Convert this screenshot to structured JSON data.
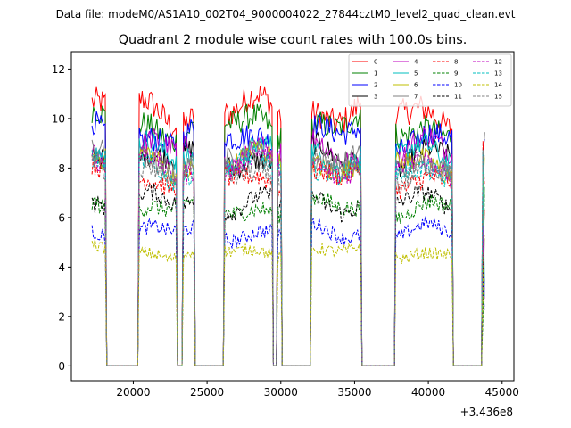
{
  "suptitle": "Data file: modeM0/AS1A10_002T04_9000004022_27844cztM0_level2_quad_clean.evt",
  "chart_data": {
    "type": "line",
    "title": "Quadrant 2 module wise count rates with 100.0s bins.",
    "xlabel": "",
    "ylabel": "",
    "x_offset_label": "+3.436e8",
    "xlim": [
      15800,
      45800
    ],
    "ylim": [
      -0.6,
      12.7
    ],
    "xticks": [
      20000,
      25000,
      30000,
      35000,
      40000,
      45000
    ],
    "xtick_labels": [
      "20000",
      "25000",
      "30000",
      "35000",
      "40000",
      "45000"
    ],
    "yticks": [
      0,
      2,
      4,
      6,
      8,
      10,
      12
    ],
    "ytick_labels": [
      "0",
      "2",
      "4",
      "6",
      "8",
      "10",
      "12"
    ],
    "legend_position": "top-right",
    "segments": [
      [
        17200,
        18150
      ],
      [
        20400,
        22900
      ],
      [
        23400,
        24100
      ],
      [
        26200,
        29400
      ],
      [
        29750,
        30000
      ],
      [
        32100,
        35400
      ],
      [
        37800,
        41600
      ],
      [
        43700,
        43850
      ]
    ],
    "zero_gaps": [
      [
        18250,
        20300
      ],
      [
        23000,
        23300
      ],
      [
        24200,
        26100
      ],
      [
        29500,
        29650
      ],
      [
        30100,
        32000
      ],
      [
        35500,
        37700
      ],
      [
        41700,
        43600
      ]
    ],
    "series": [
      {
        "name": "0",
        "color": "#ff0000",
        "dash": "solid",
        "level": 10.3
      },
      {
        "name": "1",
        "color": "#008000",
        "dash": "solid",
        "level": 9.7
      },
      {
        "name": "2",
        "color": "#0000ff",
        "dash": "solid",
        "level": 9.3
      },
      {
        "name": "3",
        "color": "#000000",
        "dash": "solid",
        "level": 8.4
      },
      {
        "name": "4",
        "color": "#bf00bf",
        "dash": "solid",
        "level": 8.7
      },
      {
        "name": "5",
        "color": "#00bfbf",
        "dash": "solid",
        "level": 8.5
      },
      {
        "name": "6",
        "color": "#bfbf00",
        "dash": "solid",
        "level": 8.2
      },
      {
        "name": "7",
        "color": "#808080",
        "dash": "solid",
        "level": 8.3
      },
      {
        "name": "8",
        "color": "#ff0000",
        "dash": "dashed",
        "level": 7.6
      },
      {
        "name": "9",
        "color": "#008000",
        "dash": "dashed",
        "level": 6.4
      },
      {
        "name": "10",
        "color": "#0000ff",
        "dash": "dashed",
        "level": 5.4
      },
      {
        "name": "11",
        "color": "#000000",
        "dash": "dashed",
        "level": 6.6
      },
      {
        "name": "12",
        "color": "#bf00bf",
        "dash": "dashed",
        "level": 8.1
      },
      {
        "name": "13",
        "color": "#00bfbf",
        "dash": "dashed",
        "level": 8.0
      },
      {
        "name": "14",
        "color": "#bfbf00",
        "dash": "dashed",
        "level": 4.6
      },
      {
        "name": "15",
        "color": "#808080",
        "dash": "dashed",
        "level": 7.9
      }
    ]
  }
}
